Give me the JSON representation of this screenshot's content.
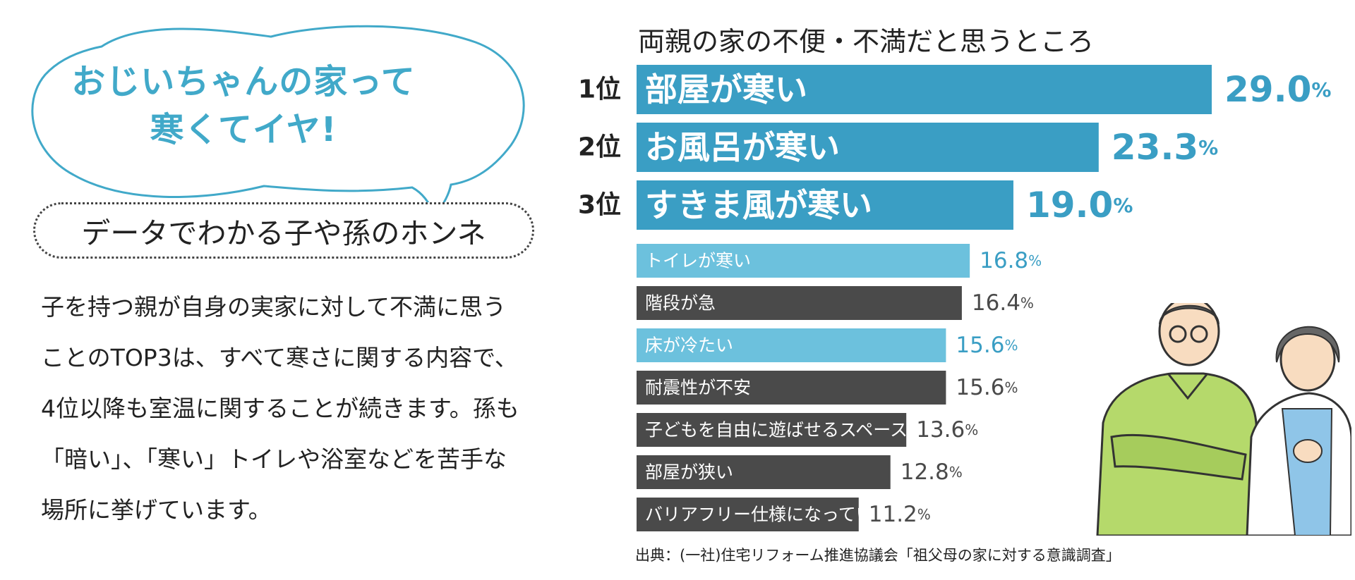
{
  "bubble": {
    "line1": "おじいちゃんの家って",
    "line2": "寒くてイヤ!"
  },
  "subtitle": "データでわかる子や孫のホンネ",
  "body_lines": [
    "子を持つ親が自身の実家に対して不満に思う",
    "ことのTOP3は、すべて寒さに関する内容で、",
    "4位以降も室温に関することが続きます。孫も",
    "「暗い」、「寒い」トイレや浴室などを苦手な",
    "場所に挙げています。"
  ],
  "source": "出典：(一社)住宅リフォーム推進協議会「祖父母の家に対する意識調査」",
  "colors": {
    "blue_dark": "#3a9ec4",
    "blue_light": "#6cc1dd",
    "gray": "#4a4a4a",
    "blue_text": "#3a9ec4"
  },
  "chart_data": {
    "type": "bar",
    "orientation": "horizontal",
    "title": "両親の家の不便・不満だと思うところ",
    "unit": "%",
    "categories": [
      "部屋が寒い",
      "お風呂が寒い",
      "すきま風が寒い",
      "トイレが寒い",
      "階段が急",
      "床が冷たい",
      "耐震性が不安",
      "子どもを自由に遊ばせるスペースがない",
      "部屋が狭い",
      "バリアフリー仕様になっていない"
    ],
    "values": [
      29.0,
      23.3,
      19.0,
      16.8,
      16.4,
      15.6,
      15.6,
      13.6,
      12.8,
      11.2
    ],
    "value_labels": [
      "29.0",
      "23.3",
      "19.0",
      "16.8",
      "16.4",
      "15.6",
      "15.6",
      "13.6",
      "12.8",
      "11.2"
    ],
    "rank_labels": [
      "1位",
      "2位",
      "3位"
    ],
    "bar_color_keys": [
      "blue_dark",
      "blue_dark",
      "blue_dark",
      "blue_light",
      "gray",
      "blue_light",
      "gray",
      "gray",
      "gray",
      "gray"
    ],
    "value_color_keys": [
      "blue_text",
      "blue_text",
      "blue_text",
      "blue_text",
      "gray",
      "blue_text",
      "gray",
      "gray",
      "gray",
      "gray"
    ]
  }
}
